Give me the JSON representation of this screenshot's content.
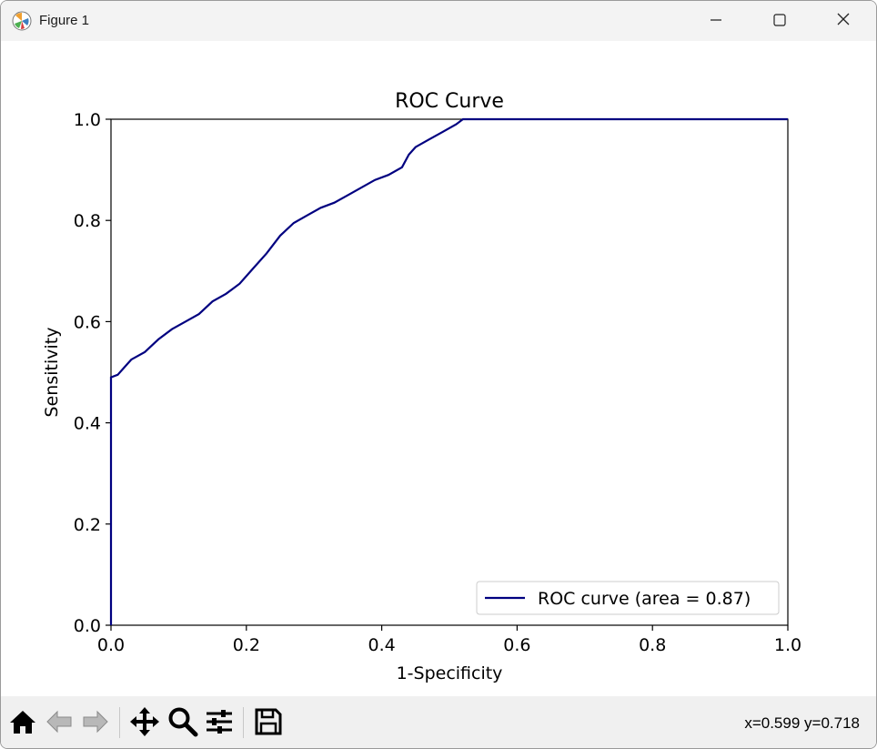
{
  "window": {
    "title": "Figure 1",
    "icons": [
      "matplotlib-icon",
      "minimize-icon",
      "maximize-icon",
      "close-icon"
    ]
  },
  "toolbar": {
    "icons": [
      "home-icon",
      "back-arrow-icon",
      "forward-arrow-icon",
      "pan-move-icon",
      "zoom-magnifier-icon",
      "configure-subplots-icon",
      "save-floppy-icon"
    ],
    "coords_text": "x=0.599 y=0.718"
  },
  "chart_data": {
    "type": "line",
    "title": "ROC Curve",
    "xlabel": "1-Specificity",
    "ylabel": "Sensitivity",
    "xlim": [
      0.0,
      1.0
    ],
    "ylim": [
      0.0,
      1.0
    ],
    "xticks": [
      "0.0",
      "0.2",
      "0.4",
      "0.6",
      "0.8",
      "1.0"
    ],
    "yticks": [
      "0.0",
      "0.2",
      "0.4",
      "0.6",
      "0.8",
      "1.0"
    ],
    "grid": false,
    "legend_position": "lower right",
    "series": [
      {
        "name": "ROC curve (area = 0.87)",
        "color": "#000080",
        "x": [
          0.0,
          0.0,
          0.0,
          0.01,
          0.02,
          0.03,
          0.05,
          0.07,
          0.09,
          0.11,
          0.13,
          0.15,
          0.17,
          0.19,
          0.21,
          0.23,
          0.25,
          0.27,
          0.29,
          0.31,
          0.33,
          0.35,
          0.37,
          0.39,
          0.41,
          0.43,
          0.44,
          0.45,
          0.47,
          0.49,
          0.51,
          0.52,
          0.6,
          0.8,
          1.0
        ],
        "y": [
          0.0,
          0.25,
          0.49,
          0.495,
          0.51,
          0.525,
          0.54,
          0.565,
          0.585,
          0.6,
          0.615,
          0.64,
          0.655,
          0.675,
          0.705,
          0.735,
          0.77,
          0.795,
          0.81,
          0.825,
          0.835,
          0.85,
          0.865,
          0.88,
          0.89,
          0.905,
          0.93,
          0.945,
          0.96,
          0.975,
          0.99,
          1.0,
          1.0,
          1.0,
          1.0
        ]
      }
    ]
  }
}
